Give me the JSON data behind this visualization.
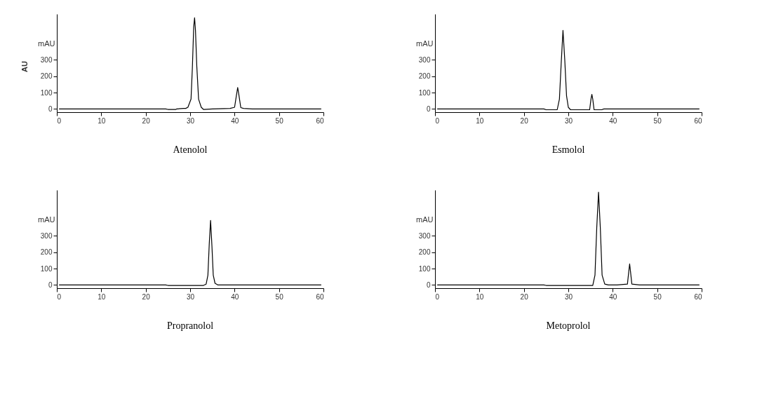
{
  "chart_data": [
    {
      "type": "line",
      "title": "Atenolol",
      "ylabel": "mAU",
      "annotations": [
        "AU"
      ],
      "xlim": [
        0,
        60
      ],
      "xticks": [
        0,
        10,
        20,
        30,
        40,
        50,
        60
      ],
      "ylim": [
        -20,
        580
      ],
      "yticks": [
        0,
        100,
        200,
        300
      ],
      "grid": false,
      "marker": "none",
      "line_style": "solid",
      "series": [
        {
          "color": "#000000",
          "x": [
            0.5,
            24.5,
            25,
            26.8,
            27,
            28.5,
            29,
            29.5,
            30.2,
            30.5,
            30.8,
            31.0,
            31.2,
            31.5,
            31.9,
            32.5,
            33,
            35,
            39,
            40.0,
            40.4,
            40.7,
            41.0,
            41.4,
            42,
            44,
            59.5
          ],
          "values": [
            0,
            0,
            -3,
            -3,
            0,
            3,
            3,
            10,
            60,
            250,
            500,
            557,
            480,
            260,
            60,
            10,
            -3,
            0,
            3,
            10,
            80,
            131,
            80,
            8,
            3,
            0,
            0
          ]
        }
      ]
    },
    {
      "type": "line",
      "title": "Esmolol",
      "ylabel": "mAU",
      "xlim": [
        0,
        60
      ],
      "xticks": [
        0,
        10,
        20,
        30,
        40,
        50,
        60
      ],
      "ylim": [
        -20,
        580
      ],
      "yticks": [
        0,
        100,
        200,
        300
      ],
      "grid": false,
      "marker": "none",
      "line_style": "solid",
      "series": [
        {
          "color": "#000000",
          "x": [
            0.5,
            24.5,
            25,
            27.5,
            28.0,
            28.4,
            28.8,
            29.2,
            29.6,
            30.0,
            30.5,
            34.8,
            35.1,
            35.3,
            35.5,
            35.8,
            37.5,
            38,
            59.5
          ],
          "values": [
            0,
            0,
            -5,
            -5,
            60,
            280,
            480,
            300,
            80,
            10,
            -5,
            -5,
            60,
            89,
            60,
            -5,
            -5,
            0,
            0
          ]
        }
      ]
    },
    {
      "type": "line",
      "title": "Propranolol",
      "ylabel": "mAU",
      "xlim": [
        0,
        60
      ],
      "xticks": [
        0,
        10,
        20,
        30,
        40,
        50,
        60
      ],
      "ylim": [
        -20,
        580
      ],
      "yticks": [
        0,
        100,
        200,
        300
      ],
      "grid": false,
      "marker": "none",
      "line_style": "solid",
      "series": [
        {
          "color": "#000000",
          "x": [
            0.5,
            24.5,
            25,
            33,
            33.6,
            34.0,
            34.3,
            34.6,
            34.9,
            35.2,
            35.6,
            36.2,
            38,
            59.5
          ],
          "values": [
            0,
            0,
            -3,
            -3,
            5,
            60,
            250,
            394,
            240,
            60,
            10,
            0,
            0,
            0
          ]
        }
      ]
    },
    {
      "type": "line",
      "title": "Metoprolol",
      "ylabel": "mAU",
      "xlim": [
        0,
        60
      ],
      "xticks": [
        0,
        10,
        20,
        30,
        40,
        50,
        60
      ],
      "ylim": [
        -20,
        580
      ],
      "yticks": [
        0,
        100,
        200,
        300
      ],
      "grid": false,
      "marker": "none",
      "line_style": "solid",
      "series": [
        {
          "color": "#000000",
          "x": [
            0.5,
            24.5,
            25,
            35.5,
            36.0,
            36.4,
            36.8,
            37.2,
            37.6,
            38.2,
            39,
            41,
            43.3,
            43.6,
            43.8,
            44.0,
            44.3,
            46,
            59.5
          ],
          "values": [
            0,
            0,
            -3,
            -3,
            60,
            350,
            567,
            350,
            60,
            5,
            0,
            0,
            5,
            80,
            128,
            80,
            5,
            0,
            0
          ]
        }
      ]
    }
  ]
}
